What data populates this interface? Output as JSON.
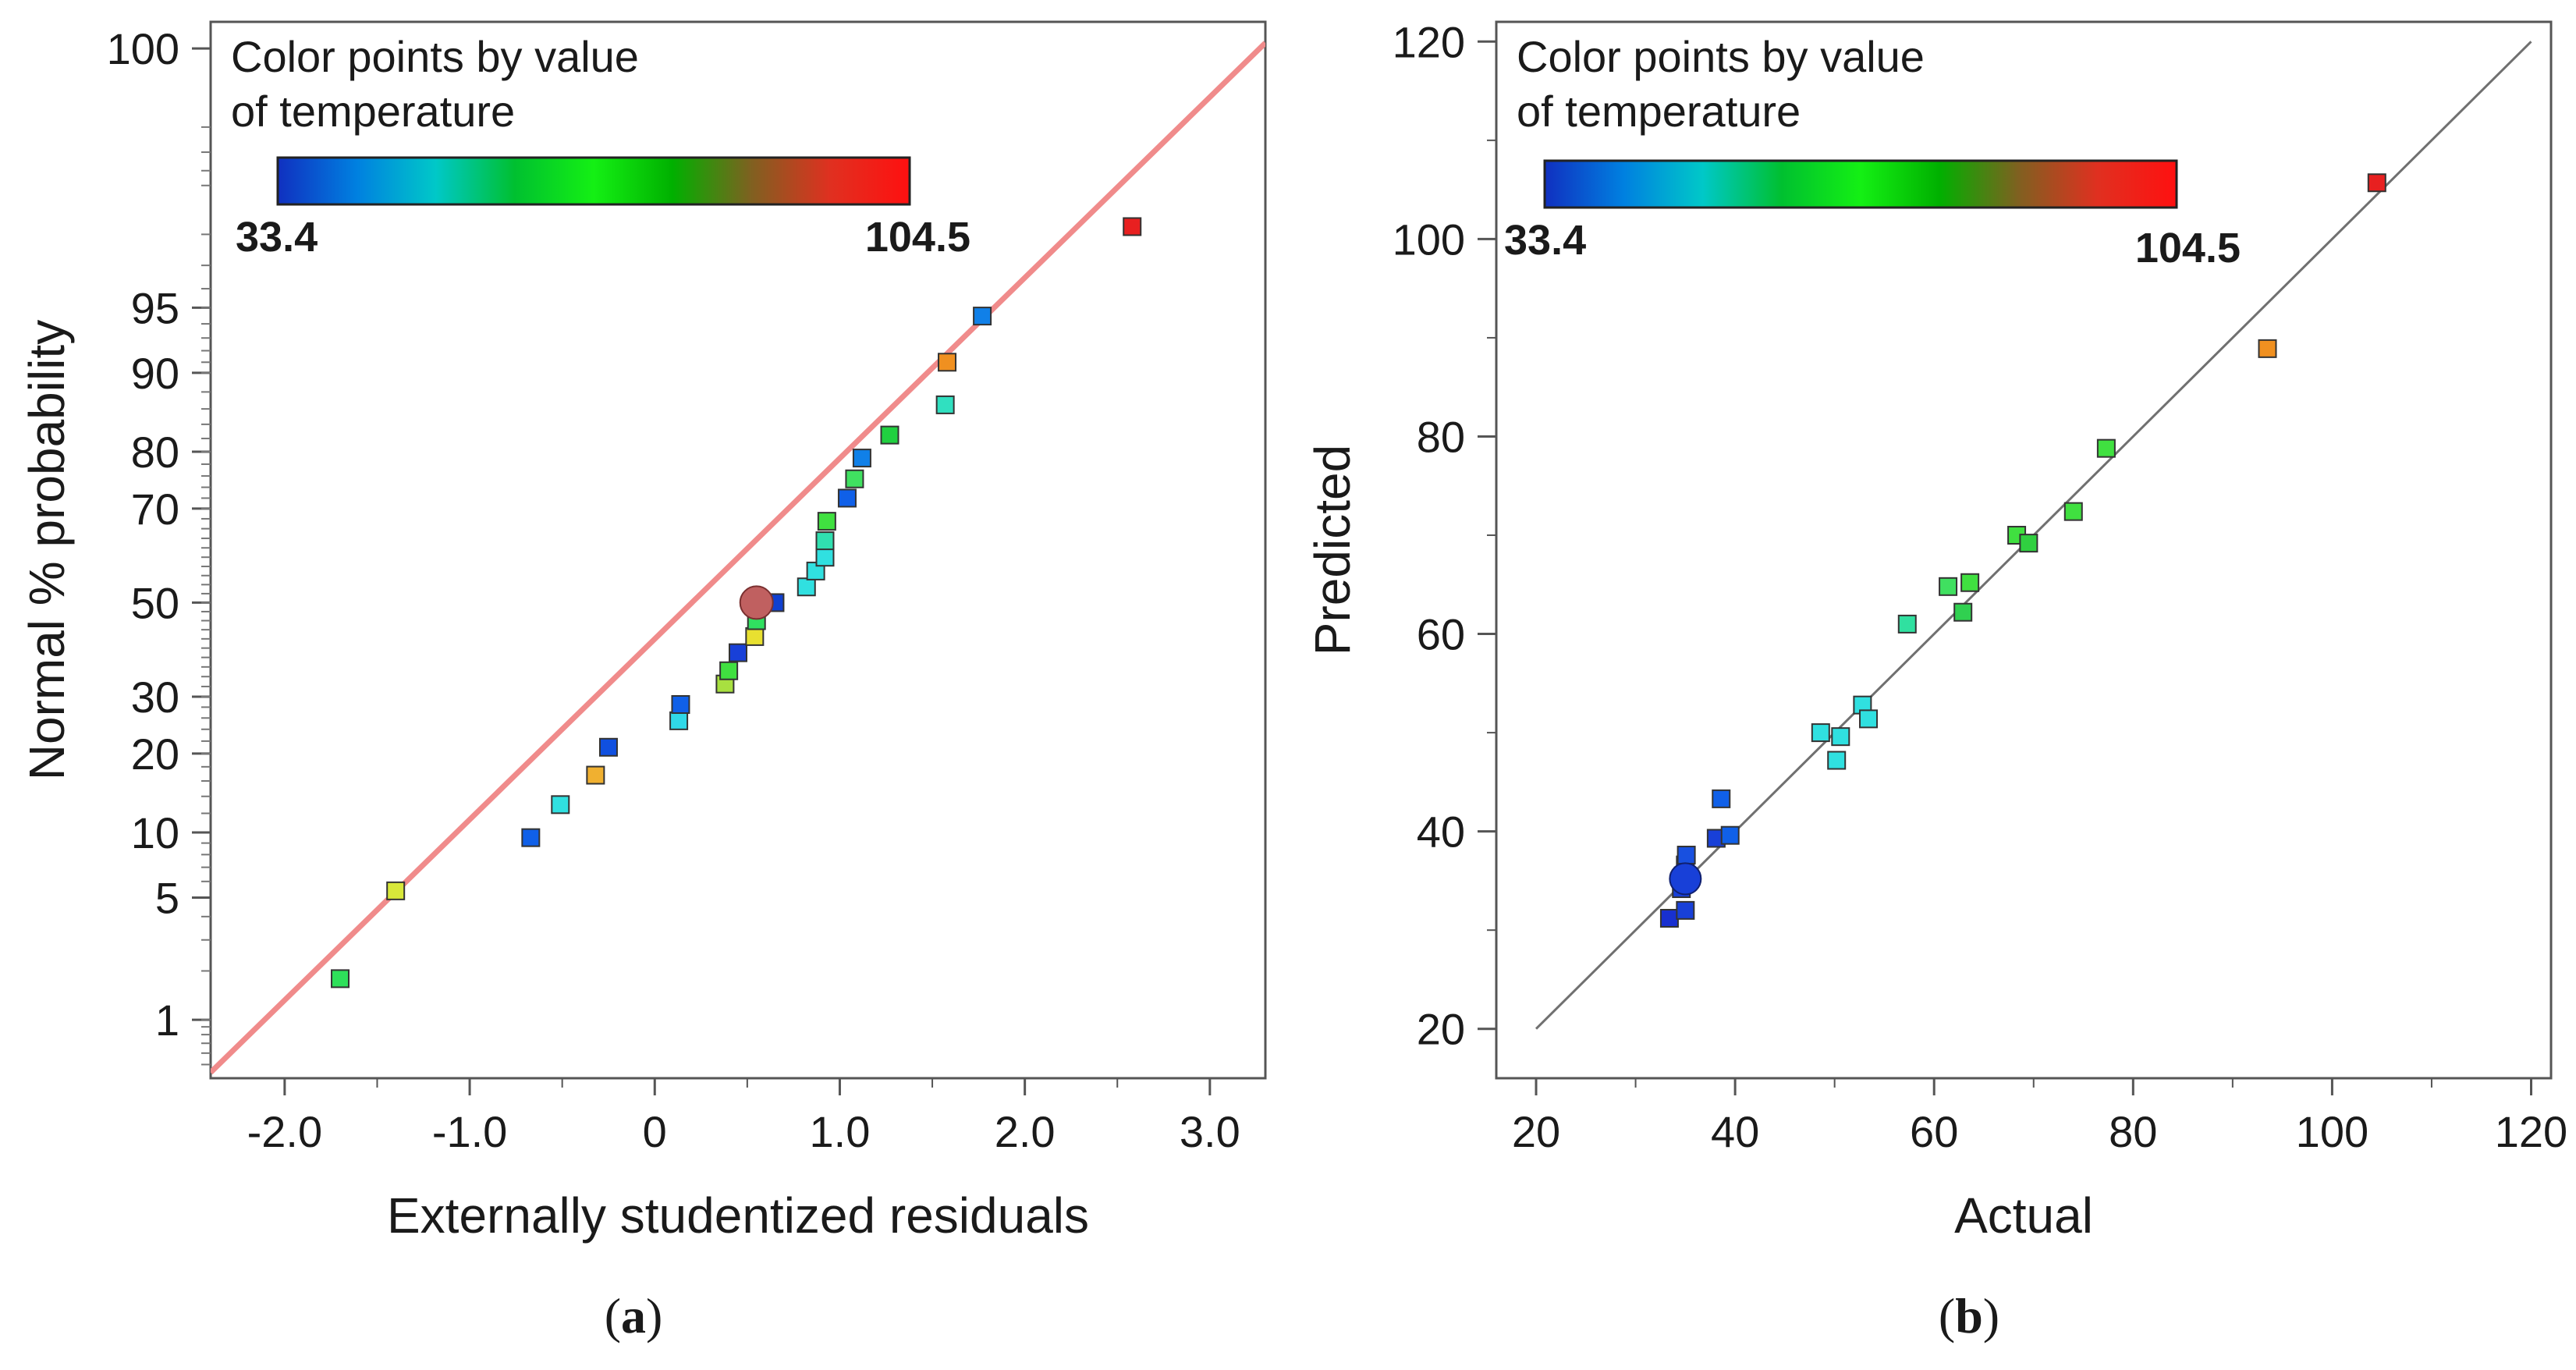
{
  "chart_data": [
    {
      "type": "scatter",
      "panel_label": "a",
      "xlabel": "Externally studentized residuals",
      "ylabel": "Normal % probability",
      "xlim": [
        -2.4,
        3.3
      ],
      "x_ticks": [
        -2.0,
        -1.0,
        0,
        1.0,
        2.0,
        3.0
      ],
      "x_tick_labels": [
        "-2.0",
        "-1.0",
        "0",
        "1.0",
        "2.0",
        "3.0"
      ],
      "y_scale": "normal-probability",
      "ylim": [
        0.4,
        99.94
      ],
      "y_ticks": [
        1,
        5,
        10,
        20,
        30,
        50,
        70,
        80,
        90,
        95,
        100
      ],
      "y_tick_labels": [
        "1",
        "5",
        "10",
        "20",
        "30",
        "50",
        "70",
        "80",
        "90",
        "95",
        "100"
      ],
      "grid": false,
      "reference_line": {
        "from": [
          -2.4,
          0.44
        ],
        "to": [
          3.3,
          99.91
        ],
        "color": "#f08b8b"
      },
      "legend": {
        "title_lines": [
          "Color points by value",
          "of temperature"
        ],
        "min_label": "33.4",
        "max_label": "104.5",
        "min_color": "#1f1fbf",
        "max_color": "#e0194b",
        "gradient": [
          "#1030c0",
          "#0080e0",
          "#00c8c8",
          "#00c030",
          "#14f014",
          "#00b000",
          "#806020",
          "#e03020",
          "#ff1010"
        ],
        "placement": "top-left"
      },
      "points": [
        {
          "x": -1.7,
          "p": 1.8,
          "c": "#2ee05a"
        },
        {
          "x": -1.4,
          "p": 5.4,
          "c": "#d8e83a"
        },
        {
          "x": -0.67,
          "p": 9.5,
          "c": "#1060e8"
        },
        {
          "x": -0.51,
          "p": 13.0,
          "c": "#30e0e0"
        },
        {
          "x": -0.32,
          "p": 16.8,
          "c": "#f0b030"
        },
        {
          "x": -0.25,
          "p": 21.0,
          "c": "#1050e0"
        },
        {
          "x": 0.13,
          "p": 25.5,
          "c": "#30d8e8"
        },
        {
          "x": 0.14,
          "p": 28.5,
          "c": "#1060e8"
        },
        {
          "x": 0.38,
          "p": 32.5,
          "c": "#a8e040"
        },
        {
          "x": 0.4,
          "p": 35.2,
          "c": "#40e040"
        },
        {
          "x": 0.45,
          "p": 39.0,
          "c": "#1840d8"
        },
        {
          "x": 0.54,
          "p": 42.5,
          "c": "#e8e030"
        },
        {
          "x": 0.55,
          "p": 46.0,
          "c": "#30e060"
        },
        {
          "x": 0.65,
          "p": 50.0,
          "c": "#1040d0"
        },
        {
          "x": 0.82,
          "p": 53.5,
          "c": "#30e0e0"
        },
        {
          "x": 0.87,
          "p": 57.0,
          "c": "#30e0e0"
        },
        {
          "x": 0.92,
          "p": 60.0,
          "c": "#30e0e0"
        },
        {
          "x": 0.92,
          "p": 63.5,
          "c": "#30e0b0"
        },
        {
          "x": 0.93,
          "p": 67.5,
          "c": "#40e040"
        },
        {
          "x": 1.04,
          "p": 72.0,
          "c": "#1060e8"
        },
        {
          "x": 1.08,
          "p": 75.5,
          "c": "#40e060"
        },
        {
          "x": 1.12,
          "p": 79.0,
          "c": "#1080e8"
        },
        {
          "x": 1.27,
          "p": 82.5,
          "c": "#20d040"
        },
        {
          "x": 1.57,
          "p": 86.5,
          "c": "#30e0c0"
        },
        {
          "x": 1.58,
          "p": 91.0,
          "c": "#f09020"
        },
        {
          "x": 1.77,
          "p": 94.5,
          "c": "#1080e8"
        },
        {
          "x": 2.58,
          "p": 98.2,
          "c": "#e82020"
        }
      ],
      "highlight_point": {
        "x": 0.55,
        "p": 50.0,
        "c": "#c06060"
      }
    },
    {
      "type": "scatter",
      "panel_label": "b",
      "xlabel": "Actual",
      "ylabel": "Predicted",
      "xlim": [
        16,
        122
      ],
      "ylim": [
        15,
        122
      ],
      "x_ticks": [
        20,
        40,
        60,
        80,
        100,
        120
      ],
      "x_tick_labels": [
        "20",
        "40",
        "60",
        "80",
        "100",
        "120"
      ],
      "y_ticks": [
        20,
        40,
        60,
        80,
        100,
        120
      ],
      "y_tick_labels": [
        "20",
        "40",
        "60",
        "80",
        "100",
        "120"
      ],
      "grid": false,
      "reference_line": {
        "from": [
          20,
          20
        ],
        "to": [
          120,
          120
        ],
        "color": "#707070"
      },
      "legend": {
        "title_lines": [
          "Color points by value",
          "of temperature"
        ],
        "min_label": "33.4",
        "max_label": "104.5",
        "min_color": "#1f1fbf",
        "max_color": "#e0194b",
        "gradient": [
          "#1030c0",
          "#0080e0",
          "#00c8c8",
          "#00c030",
          "#14f014",
          "#00b000",
          "#806020",
          "#e03020",
          "#ff1010"
        ],
        "placement": "top-left"
      },
      "points": [
        {
          "x": 33.4,
          "y": 31.2,
          "c": "#1830d0"
        },
        {
          "x": 35.0,
          "y": 32.0,
          "c": "#1840d8"
        },
        {
          "x": 34.6,
          "y": 34.2,
          "c": "#1840d8"
        },
        {
          "x": 34.8,
          "y": 35.5,
          "c": "#1840d8"
        },
        {
          "x": 35.0,
          "y": 36.6,
          "c": "#1848d8"
        },
        {
          "x": 35.1,
          "y": 37.6,
          "c": "#1850e0"
        },
        {
          "x": 38.1,
          "y": 39.3,
          "c": "#1840d8"
        },
        {
          "x": 39.5,
          "y": 39.6,
          "c": "#1060e8"
        },
        {
          "x": 38.6,
          "y": 43.3,
          "c": "#1060e8"
        },
        {
          "x": 48.6,
          "y": 50.0,
          "c": "#30e0e0"
        },
        {
          "x": 50.2,
          "y": 47.2,
          "c": "#30e0e0"
        },
        {
          "x": 50.6,
          "y": 49.6,
          "c": "#30e0e0"
        },
        {
          "x": 52.8,
          "y": 52.8,
          "c": "#30e0e0"
        },
        {
          "x": 53.4,
          "y": 51.4,
          "c": "#30e0e0"
        },
        {
          "x": 57.3,
          "y": 61.0,
          "c": "#30e0a0"
        },
        {
          "x": 61.4,
          "y": 64.8,
          "c": "#40e060"
        },
        {
          "x": 62.9,
          "y": 62.2,
          "c": "#30d050"
        },
        {
          "x": 63.6,
          "y": 65.2,
          "c": "#40e040"
        },
        {
          "x": 68.3,
          "y": 70.0,
          "c": "#40e040"
        },
        {
          "x": 69.5,
          "y": 69.2,
          "c": "#30d040"
        },
        {
          "x": 74.0,
          "y": 72.4,
          "c": "#40e040"
        },
        {
          "x": 77.3,
          "y": 78.8,
          "c": "#40e040"
        },
        {
          "x": 93.5,
          "y": 88.9,
          "c": "#f09020"
        },
        {
          "x": 104.5,
          "y": 105.7,
          "c": "#e82020"
        }
      ],
      "highlight_point": {
        "x": 35.0,
        "y": 35.2,
        "c": "#1840d8"
      }
    }
  ]
}
